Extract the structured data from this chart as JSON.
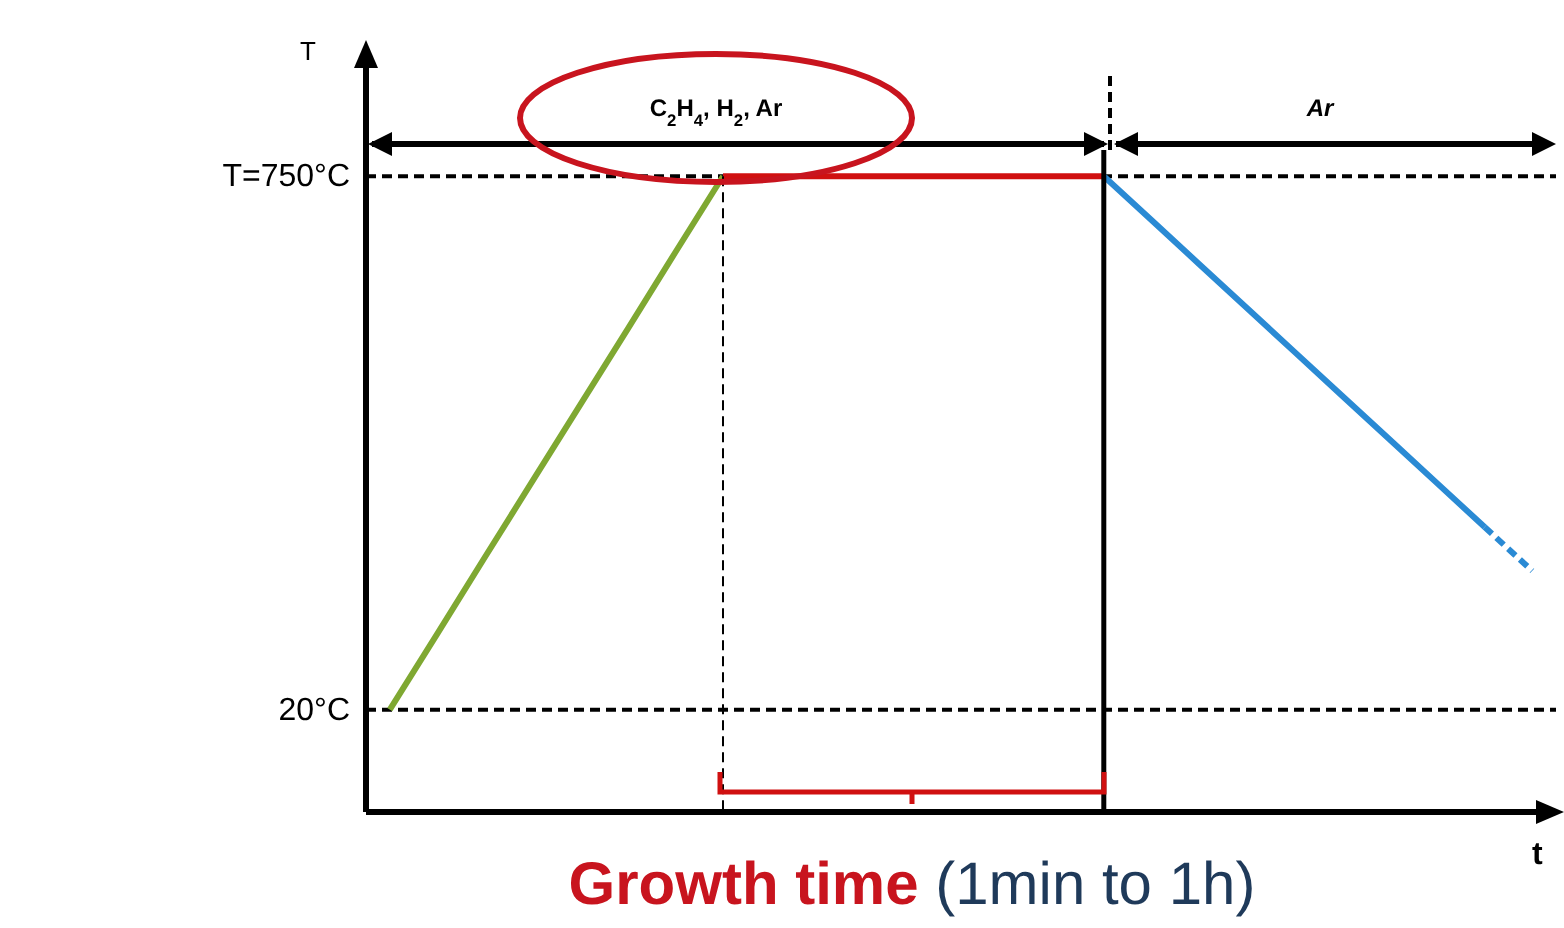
{
  "chart_data": {
    "type": "line",
    "ylabel": "T",
    "xlabel": "t",
    "categories": [
      null,
      null,
      null,
      null,
      null,
      null,
      null,
      null,
      null,
      null,
      null,
      null,
      null,
      null,
      null,
      null,
      null,
      null,
      null,
      null,
      null,
      null,
      null,
      null,
      null
    ],
    "series": [
      {
        "color": "#7fa832",
        "values": [
          20,
          124,
          229,
          333,
          437,
          541,
          646,
          750,
          null,
          null,
          null,
          null,
          null,
          null,
          null,
          null,
          null,
          null,
          null,
          null,
          null,
          null,
          null,
          null,
          null
        ]
      },
      {
        "color": "#d01010",
        "values": [
          null,
          null,
          null,
          null,
          null,
          null,
          null,
          750,
          750,
          750,
          750,
          750,
          750,
          750,
          750,
          750,
          null,
          null,
          null,
          null,
          null,
          null,
          null,
          null,
          null
        ]
      },
      {
        "color": "#2a8ad4",
        "values": [
          null,
          null,
          null,
          null,
          null,
          null,
          null,
          null,
          null,
          null,
          null,
          null,
          null,
          null,
          null,
          750,
          690,
          630,
          570,
          510,
          450,
          390,
          330,
          270,
          null
        ]
      },
      {
        "color": "#2a8ad4",
        "line_style": "dashed",
        "values": [
          null,
          null,
          null,
          null,
          null,
          null,
          null,
          null,
          null,
          null,
          null,
          null,
          null,
          null,
          null,
          null,
          null,
          null,
          null,
          null,
          null,
          null,
          null,
          270,
          210
        ]
      }
    ],
    "ylim": [
      -120,
      920
    ],
    "yticks": [
      {
        "value": 20,
        "label": "20°C"
      },
      {
        "value": 750,
        "label": "T=750°C"
      }
    ],
    "ref_lines": [
      {
        "axis": "y",
        "value": 750,
        "line_style": "dashed"
      },
      {
        "axis": "y",
        "value": 20,
        "line_style": "dashed"
      }
    ],
    "annotations": [
      "C$_{2}$H$_{4}$, H$_{2}$, Ar",
      "Ar",
      "Growth time (1min to 1h)"
    ],
    "grid": false,
    "marker": "none"
  }
}
